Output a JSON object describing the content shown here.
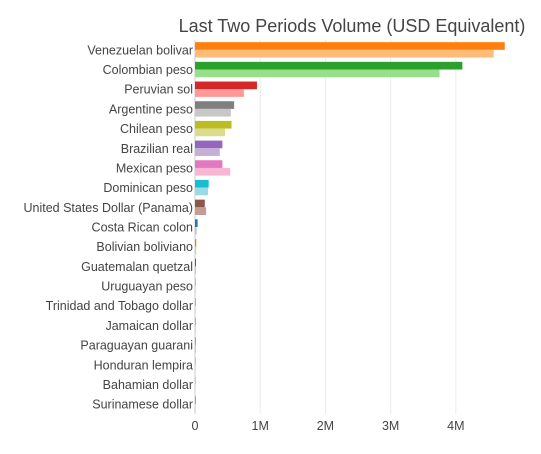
{
  "chart_data": {
    "type": "bar",
    "orientation": "horizontal",
    "title": "Last Two Periods Volume (USD Equivalent)",
    "xlabel": "",
    "ylabel": "",
    "xlim": [
      0,
      4800000
    ],
    "x_ticks": [
      {
        "value": 0,
        "label": "0"
      },
      {
        "value": 1000000,
        "label": "1M"
      },
      {
        "value": 2000000,
        "label": "2M"
      },
      {
        "value": 3000000,
        "label": "3M"
      },
      {
        "value": 4000000,
        "label": "4M"
      }
    ],
    "grid": true,
    "legend": "none",
    "categories": [
      "Venezuelan bolivar",
      "Colombian peso",
      "Peruvian sol",
      "Argentine peso",
      "Chilean peso",
      "Brazilian real",
      "Mexican peso",
      "Dominican peso",
      "United States Dollar (Panama)",
      "Costa Rican colon",
      "Bolivian boliviano",
      "Guatemalan quetzal",
      "Uruguayan peso",
      "Trinidad and Tobago dollar",
      "Jamaican dollar",
      "Paraguayan guarani",
      "Honduran lempira",
      "Bahamian dollar",
      "Surinamese dollar"
    ],
    "series": [
      {
        "values": [
          4750000,
          4100000,
          950000,
          600000,
          560000,
          420000,
          420000,
          210000,
          150000,
          40000,
          20000,
          15000,
          8000,
          5000,
          4000,
          3000,
          2000,
          1000,
          500
        ]
      },
      {
        "values": [
          4580000,
          3750000,
          750000,
          550000,
          460000,
          380000,
          540000,
          200000,
          170000,
          25000,
          18000,
          12000,
          6000,
          4000,
          3000,
          2000,
          1500,
          800,
          300
        ]
      }
    ],
    "bar_colors": [
      [
        "#ff7f0e",
        "#ffbb78"
      ],
      [
        "#2ca02c",
        "#98df8a"
      ],
      [
        "#d62728",
        "#ff9896"
      ],
      [
        "#7f7f7f",
        "#c7c7c7"
      ],
      [
        "#bcbd22",
        "#dbdb8d"
      ],
      [
        "#9467bd",
        "#c5b0d5"
      ],
      [
        "#e377c2",
        "#f7b6d2"
      ],
      [
        "#17becf",
        "#9edae5"
      ],
      [
        "#8c564b",
        "#c49c94"
      ],
      [
        "#1f77b4",
        "#aec7e8"
      ],
      [
        "#ff7f0e",
        "#ffbb78"
      ],
      [
        "#d62728",
        "#ff9896"
      ],
      [
        "#17becf",
        "#9edae5"
      ],
      [
        "#7f7f7f",
        "#c7c7c7"
      ],
      [
        "#9467bd",
        "#c5b0d5"
      ],
      [
        "#8c564b",
        "#c49c94"
      ],
      [
        "#e377c2",
        "#f7b6d2"
      ],
      [
        "#bcbd22",
        "#dbdb8d"
      ],
      [
        "#1f77b4",
        "#aec7e8"
      ]
    ]
  }
}
